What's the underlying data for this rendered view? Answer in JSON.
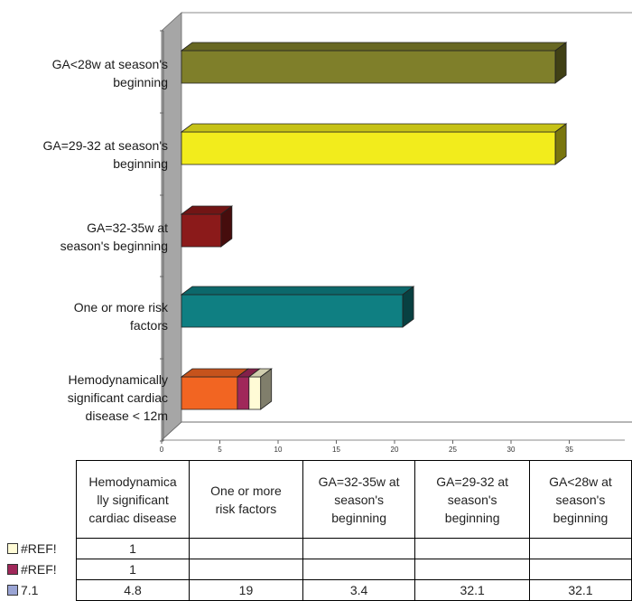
{
  "chart_data": {
    "type": "bar",
    "orientation": "horizontal",
    "stacked": true,
    "three_d": true,
    "xlim": [
      0,
      35
    ],
    "x_ticks": [
      "0",
      "5",
      "10",
      "15",
      "20",
      "25",
      "30",
      "35"
    ],
    "categories": [
      "GA<28w at season's beginning",
      "GA=29-32 at season's beginning",
      "GA=32-35w at season's beginning",
      "One or more risk factors",
      "Hemodynamically significant cardiac disease < 12m"
    ],
    "category_lines": [
      [
        "GA<28w at season's",
        "beginning"
      ],
      [
        "GA=29-32 at season's",
        "beginning"
      ],
      [
        "GA=32-35w at",
        "season's beginning"
      ],
      [
        "One or more risk",
        "factors"
      ],
      [
        "Hemodynamically",
        "significant cardiac",
        "disease < 12m"
      ]
    ],
    "bar_colors": [
      "#7f7f2a",
      "#f2ec1c",
      "#8b1a1a",
      "#0f7f82",
      "#f26522"
    ],
    "series": [
      {
        "name": "7.1",
        "color": "#f26522",
        "values": [
          32.1,
          32.1,
          3.4,
          19,
          4.8
        ]
      },
      {
        "name": "#REF!",
        "color": "#a0285a",
        "values": [
          null,
          null,
          null,
          null,
          1
        ]
      },
      {
        "name": "#REF!",
        "color": "#fffbd6",
        "values": [
          null,
          null,
          null,
          null,
          1
        ]
      }
    ],
    "table": {
      "headers": [
        [
          "Hemodynamica",
          "lly significant",
          "cardiac disease"
        ],
        [
          "One or more",
          "risk factors"
        ],
        [
          "GA=32-35w at",
          "season's",
          "beginning"
        ],
        [
          "GA=29-32 at",
          "season's",
          "beginning"
        ],
        [
          "GA<28w at",
          "season's",
          "beginning"
        ]
      ],
      "rows": [
        {
          "label": "#REF!",
          "swatch": "#fffbd6",
          "cells": [
            "1",
            "",
            "",
            "",
            ""
          ]
        },
        {
          "label": "#REF!",
          "swatch": "#a0285a",
          "cells": [
            "1",
            "",
            "",
            "",
            ""
          ]
        },
        {
          "label": "7.1",
          "swatch": "#9aa4d4",
          "cells": [
            "4.8",
            "19",
            "3.4",
            "32.1",
            "32.1"
          ]
        }
      ]
    }
  }
}
